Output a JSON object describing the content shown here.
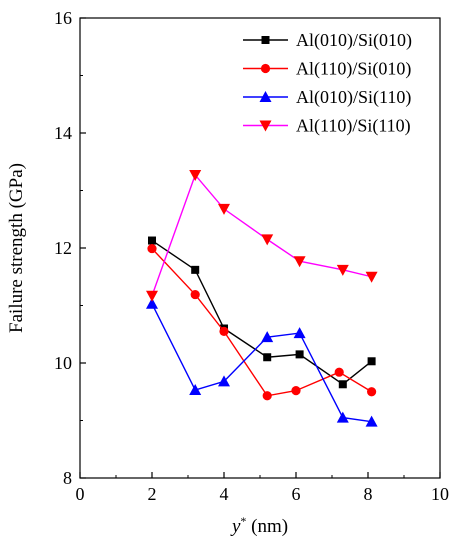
{
  "chart_data": {
    "type": "line",
    "title": "",
    "xlabel_var": "y",
    "xlabel_sup": "*",
    "xlabel_unit": " (nm)",
    "ylabel": "Failure strength (GPa)",
    "xlim": [
      0,
      10
    ],
    "ylim": [
      8,
      16
    ],
    "xticks": [
      0,
      2,
      4,
      6,
      8,
      10
    ],
    "yticks": [
      8,
      10,
      12,
      14,
      16
    ],
    "xtick_labels": [
      "0",
      "2",
      "4",
      "6",
      "8",
      "10"
    ],
    "ytick_labels": [
      "8",
      "10",
      "12",
      "14",
      "16"
    ],
    "grid": false,
    "legend_position": "top-right",
    "series": [
      {
        "name": "Al(010)/Si(010)",
        "color": "#000000",
        "marker": "square",
        "x": [
          2.0,
          3.2,
          4.0,
          5.2,
          6.1,
          7.3,
          8.1
        ],
        "y": [
          12.13,
          11.62,
          10.6,
          10.1,
          10.15,
          9.63,
          10.03
        ]
      },
      {
        "name": "Al(110)/Si(010)",
        "color": "#ff0000",
        "marker": "circle",
        "x": [
          2.0,
          3.2,
          4.0,
          5.2,
          6.0,
          7.2,
          8.1
        ],
        "y": [
          11.99,
          11.19,
          10.55,
          9.43,
          9.52,
          9.84,
          9.5
        ]
      },
      {
        "name": "Al(010)/Si(110)",
        "color": "#0000ff",
        "marker": "triangle-up",
        "x": [
          2.0,
          3.2,
          4.0,
          5.2,
          6.1,
          7.3,
          8.1
        ],
        "y": [
          11.03,
          9.53,
          9.68,
          10.45,
          10.52,
          9.05,
          8.98
        ]
      },
      {
        "name": "Al(110)/Si(110)",
        "color": "#ff00ff",
        "marker_color": "#ff0000",
        "marker": "triangle-down",
        "x": [
          2.0,
          3.2,
          4.0,
          5.2,
          6.1,
          7.3,
          8.1
        ],
        "y": [
          11.17,
          13.27,
          12.68,
          12.15,
          11.77,
          11.62,
          11.5
        ]
      }
    ]
  }
}
